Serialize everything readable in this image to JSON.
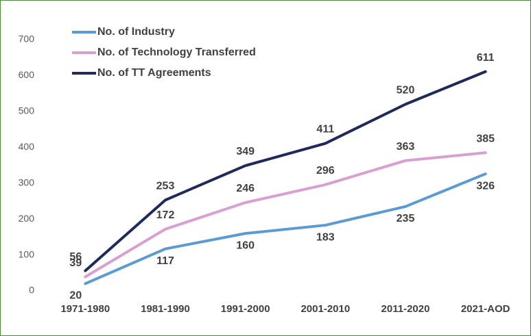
{
  "chart_data": {
    "type": "line",
    "categories": [
      "1971-1980",
      "1981-1990",
      "1991-2000",
      "2001-2010",
      "2011-2020",
      "2021-AOD"
    ],
    "series": [
      {
        "name": "No. of Industry",
        "color": "#5b9bd5",
        "values": [
          20,
          117,
          160,
          183,
          235,
          326
        ]
      },
      {
        "name": "No. of Technology Transferred",
        "color": "#d89fd0",
        "values": [
          39,
          172,
          246,
          296,
          363,
          385
        ]
      },
      {
        "name": "No. of TT Agreements",
        "color": "#1f2a5c",
        "values": [
          56,
          253,
          349,
          411,
          520,
          611
        ]
      }
    ],
    "ylim": [
      0,
      700
    ],
    "yticks": [
      0,
      100,
      200,
      300,
      400,
      500,
      600,
      700
    ],
    "grid": false,
    "legend": "top-left"
  }
}
